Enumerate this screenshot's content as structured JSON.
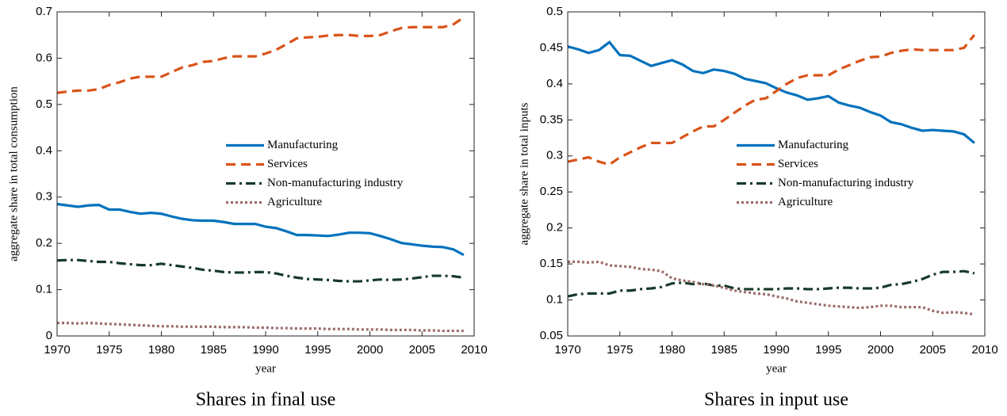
{
  "chart_data": [
    {
      "type": "line",
      "title": "Shares in final use",
      "x_label": "year",
      "y_label": "aggregate share in total consumption",
      "x": [
        1970,
        1971,
        1972,
        1973,
        1974,
        1975,
        1976,
        1977,
        1978,
        1979,
        1980,
        1981,
        1982,
        1983,
        1984,
        1985,
        1986,
        1987,
        1988,
        1989,
        1990,
        1991,
        1992,
        1993,
        1994,
        1995,
        1996,
        1997,
        1998,
        1999,
        2000,
        2001,
        2002,
        2003,
        2004,
        2005,
        2006,
        2007,
        2008,
        2009
      ],
      "xlim": [
        1970,
        2010
      ],
      "xticks": [
        1970,
        1975,
        1980,
        1985,
        1990,
        1995,
        2000,
        2005,
        2010
      ],
      "ylim": [
        0,
        0.7
      ],
      "yticks": [
        0,
        0.1,
        0.2,
        0.3,
        0.4,
        0.5,
        0.6,
        0.7
      ],
      "legend": "east",
      "series": [
        {
          "name": "Manufacturing",
          "color": "#0072bd",
          "style": "solid",
          "values": [
            0.285,
            0.282,
            0.279,
            0.282,
            0.283,
            0.273,
            0.273,
            0.268,
            0.264,
            0.266,
            0.264,
            0.258,
            0.253,
            0.25,
            0.249,
            0.249,
            0.246,
            0.242,
            0.242,
            0.242,
            0.236,
            0.233,
            0.226,
            0.218,
            0.218,
            0.217,
            0.216,
            0.219,
            0.223,
            0.223,
            0.222,
            0.216,
            0.209,
            0.201,
            0.198,
            0.195,
            0.193,
            0.192,
            0.187,
            0.175
          ]
        },
        {
          "name": "Services",
          "color": "#d95319",
          "style": "dashed",
          "values": [
            0.525,
            0.528,
            0.53,
            0.53,
            0.533,
            0.542,
            0.548,
            0.556,
            0.56,
            0.56,
            0.56,
            0.57,
            0.58,
            0.585,
            0.592,
            0.594,
            0.6,
            0.604,
            0.604,
            0.604,
            0.61,
            0.618,
            0.63,
            0.643,
            0.645,
            0.646,
            0.649,
            0.65,
            0.65,
            0.648,
            0.648,
            0.65,
            0.658,
            0.665,
            0.667,
            0.667,
            0.667,
            0.667,
            0.673,
            0.688
          ]
        },
        {
          "name": "Non-manufacturing industry",
          "color": "#173a2a",
          "style": "dashdot",
          "values": [
            0.163,
            0.164,
            0.164,
            0.162,
            0.16,
            0.16,
            0.157,
            0.155,
            0.153,
            0.153,
            0.156,
            0.153,
            0.15,
            0.147,
            0.143,
            0.141,
            0.138,
            0.137,
            0.137,
            0.138,
            0.138,
            0.135,
            0.13,
            0.126,
            0.123,
            0.122,
            0.121,
            0.119,
            0.118,
            0.118,
            0.12,
            0.122,
            0.121,
            0.122,
            0.124,
            0.127,
            0.13,
            0.13,
            0.129,
            0.126
          ]
        },
        {
          "name": "Agriculture",
          "color": "#9c6b6b",
          "style": "dotted",
          "values": [
            0.028,
            0.028,
            0.027,
            0.028,
            0.027,
            0.026,
            0.025,
            0.024,
            0.023,
            0.022,
            0.021,
            0.021,
            0.02,
            0.02,
            0.02,
            0.02,
            0.019,
            0.019,
            0.019,
            0.018,
            0.018,
            0.017,
            0.017,
            0.016,
            0.016,
            0.016,
            0.015,
            0.015,
            0.015,
            0.014,
            0.014,
            0.014,
            0.013,
            0.013,
            0.013,
            0.012,
            0.012,
            0.011,
            0.011,
            0.011
          ]
        }
      ]
    },
    {
      "type": "line",
      "title": "Shares in input use",
      "x_label": "year",
      "y_label": "aggregate share in total inputs",
      "x": [
        1970,
        1971,
        1972,
        1973,
        1974,
        1975,
        1976,
        1977,
        1978,
        1979,
        1980,
        1981,
        1982,
        1983,
        1984,
        1985,
        1986,
        1987,
        1988,
        1989,
        1990,
        1991,
        1992,
        1993,
        1994,
        1995,
        1996,
        1997,
        1998,
        1999,
        2000,
        2001,
        2002,
        2003,
        2004,
        2005,
        2006,
        2007,
        2008,
        2009
      ],
      "xlim": [
        1970,
        2010
      ],
      "xticks": [
        1970,
        1975,
        1980,
        1985,
        1990,
        1995,
        2000,
        2005,
        2010
      ],
      "ylim": [
        0.05,
        0.5
      ],
      "yticks": [
        0.05,
        0.1,
        0.15,
        0.2,
        0.25,
        0.3,
        0.35,
        0.4,
        0.45,
        0.5
      ],
      "legend": "east",
      "series": [
        {
          "name": "Manufacturing",
          "color": "#0072bd",
          "style": "solid",
          "values": [
            0.452,
            0.448,
            0.443,
            0.447,
            0.458,
            0.44,
            0.439,
            0.432,
            0.425,
            0.429,
            0.433,
            0.427,
            0.418,
            0.415,
            0.42,
            0.418,
            0.414,
            0.407,
            0.404,
            0.401,
            0.394,
            0.388,
            0.384,
            0.378,
            0.38,
            0.383,
            0.374,
            0.37,
            0.367,
            0.361,
            0.356,
            0.347,
            0.344,
            0.339,
            0.335,
            0.336,
            0.335,
            0.334,
            0.33,
            0.318
          ]
        },
        {
          "name": "Services",
          "color": "#d95319",
          "style": "dashed",
          "values": [
            0.292,
            0.295,
            0.298,
            0.292,
            0.288,
            0.298,
            0.305,
            0.312,
            0.318,
            0.318,
            0.318,
            0.326,
            0.334,
            0.341,
            0.341,
            0.35,
            0.36,
            0.37,
            0.378,
            0.38,
            0.39,
            0.4,
            0.408,
            0.412,
            0.412,
            0.412,
            0.42,
            0.426,
            0.432,
            0.437,
            0.438,
            0.443,
            0.446,
            0.448,
            0.447,
            0.447,
            0.447,
            0.447,
            0.45,
            0.468
          ]
        },
        {
          "name": "Non-manufacturing industry",
          "color": "#173a2a",
          "style": "dashdot",
          "values": [
            0.105,
            0.108,
            0.109,
            0.109,
            0.109,
            0.113,
            0.113,
            0.115,
            0.116,
            0.118,
            0.123,
            0.124,
            0.122,
            0.123,
            0.12,
            0.12,
            0.116,
            0.115,
            0.115,
            0.115,
            0.115,
            0.116,
            0.116,
            0.115,
            0.115,
            0.116,
            0.117,
            0.117,
            0.116,
            0.116,
            0.117,
            0.121,
            0.122,
            0.125,
            0.129,
            0.135,
            0.139,
            0.139,
            0.14,
            0.137
          ]
        },
        {
          "name": "Agriculture",
          "color": "#9c6b6b",
          "style": "dotted",
          "values": [
            0.153,
            0.153,
            0.152,
            0.153,
            0.148,
            0.147,
            0.146,
            0.143,
            0.142,
            0.14,
            0.13,
            0.127,
            0.125,
            0.122,
            0.12,
            0.117,
            0.113,
            0.111,
            0.109,
            0.108,
            0.105,
            0.102,
            0.098,
            0.096,
            0.094,
            0.092,
            0.091,
            0.09,
            0.089,
            0.09,
            0.092,
            0.092,
            0.09,
            0.09,
            0.09,
            0.085,
            0.082,
            0.083,
            0.082,
            0.08
          ]
        }
      ]
    }
  ]
}
